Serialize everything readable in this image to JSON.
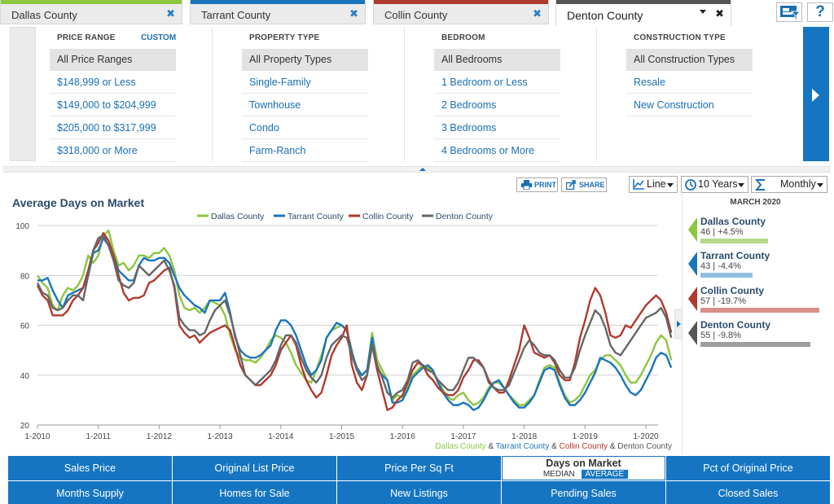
{
  "tabs": [
    {
      "label": "Dallas County",
      "color": "#8dc63f",
      "active": false
    },
    {
      "label": "Tarrant County",
      "color": "#1a75bc",
      "active": false
    },
    {
      "label": "Collin County",
      "color": "#b03a2e",
      "active": false
    },
    {
      "label": "Denton County",
      "color": "#555555",
      "active": true
    }
  ],
  "tab_close_glyph": "✖",
  "help_glyph": "?",
  "filters": {
    "price": {
      "title": "PRICE RANGE",
      "custom": "CUSTOM",
      "options": [
        "All Price Ranges",
        "$148,999 or Less",
        "$149,000 to $204,999",
        "$205,000 to $317,999",
        "$318,000 or More"
      ]
    },
    "property": {
      "title": "PROPERTY TYPE",
      "options": [
        "All Property Types",
        "Single-Family",
        "Townhouse",
        "Condo",
        "Farm-Ranch"
      ]
    },
    "bedroom": {
      "title": "BEDROOM",
      "options": [
        "All Bedrooms",
        "1 Bedroom or Less",
        "2 Bedrooms",
        "3 Bedrooms",
        "4 Bedrooms or More"
      ]
    },
    "construction": {
      "title": "CONSTRUCTION TYPE",
      "options": [
        "All Construction Types",
        "Resale",
        "New Construction"
      ]
    }
  },
  "toolbar": {
    "print": "PRINT",
    "share": "SHARE",
    "chart_type": "Line",
    "range": "10 Years",
    "interval": "Monthly"
  },
  "side_panel": {
    "date": "MARCH 2020",
    "items": [
      {
        "name": "Dallas County",
        "stat": "46 | +4.5%",
        "color": "#8dc63f",
        "bar_color": "#b5d98b",
        "level": 0.47
      },
      {
        "name": "Tarrant County",
        "stat": "43 | -4.4%",
        "color": "#1a75bc",
        "bar_color": "#8fbfe3",
        "level": 0.44
      },
      {
        "name": "Collin County",
        "stat": "57 | -19.7%",
        "color": "#b03a2e",
        "bar_color": "#d98e87",
        "level": 0.99
      },
      {
        "name": "Denton County",
        "stat": "55 | -9.8%",
        "color": "#555555",
        "bar_color": "#9d9d9d",
        "level": 0.93
      }
    ]
  },
  "metrics": {
    "row1": [
      "Sales Price",
      "Original List Price",
      "Price Per Sq Ft",
      "Days on Market",
      "Pct of Original Price"
    ],
    "row2": [
      "Months Supply",
      "Homes for Sale",
      "New Listings",
      "Pending Sales",
      "Closed Sales"
    ],
    "active": "Days on Market",
    "active_options": [
      "MEDIAN",
      "AVERAGE"
    ],
    "active_option": "AVERAGE"
  },
  "chart_data": {
    "type": "line",
    "title": "Average Days on Market",
    "x_ticks": [
      "1-2010",
      "1-2011",
      "1-2012",
      "1-2013",
      "1-2014",
      "1-2015",
      "1-2016",
      "1-2017",
      "1-2018",
      "1-2019",
      "1-2020"
    ],
    "ylim": [
      20,
      100
    ],
    "y_ticks": [
      20,
      40,
      60,
      80,
      100
    ],
    "grid": true,
    "legend_position": "top",
    "start": "2010-01",
    "end": "2020-03",
    "footer_sep1": " & ",
    "footer_sep2": " & ",
    "footer_sep3": " & ",
    "series": [
      {
        "name": "Dallas County",
        "color": "#8dc63f",
        "values": [
          80,
          77,
          75,
          68,
          66,
          72,
          75,
          74,
          76,
          80,
          88,
          85,
          88,
          96,
          98,
          90,
          84,
          85,
          82,
          84,
          88,
          88,
          87,
          89,
          89,
          91,
          88,
          82,
          72,
          67,
          66,
          67,
          65,
          67,
          70,
          69,
          68,
          64,
          56,
          50,
          47,
          46,
          46,
          45,
          47,
          50,
          54,
          56,
          55,
          53,
          49,
          44,
          41,
          38,
          37,
          42,
          48,
          55,
          58,
          59,
          60,
          58,
          50,
          42,
          40,
          42,
          57,
          46,
          42,
          38,
          30,
          32,
          31,
          36,
          40,
          42,
          44,
          43,
          41,
          38,
          34,
          31,
          30,
          32,
          33,
          30,
          28,
          29,
          31,
          35,
          37,
          37,
          35,
          32,
          30,
          28,
          28,
          30,
          32,
          38,
          43,
          44,
          43,
          37,
          32,
          29,
          30,
          32,
          36,
          40,
          42,
          46,
          48,
          48,
          46,
          44,
          40,
          37,
          37,
          40,
          44,
          48,
          53,
          56,
          54,
          46
        ]
      },
      {
        "name": "Tarrant County",
        "color": "#1a75bc",
        "values": [
          78,
          78,
          79,
          74,
          70,
          67,
          72,
          73,
          74,
          75,
          80,
          89,
          90,
          95,
          92,
          88,
          82,
          80,
          78,
          78,
          84,
          87,
          86,
          86,
          87,
          87,
          85,
          80,
          75,
          72,
          70,
          68,
          67,
          65,
          70,
          70,
          70,
          73,
          65,
          55,
          50,
          48,
          47,
          47,
          48,
          50,
          52,
          58,
          62,
          62,
          60,
          56,
          50,
          44,
          40,
          42,
          46,
          55,
          58,
          61,
          60,
          58,
          49,
          43,
          40,
          42,
          55,
          43,
          40,
          38,
          29,
          29,
          30,
          34,
          39,
          41,
          43,
          44,
          42,
          37,
          33,
          30,
          28,
          28,
          29,
          28,
          26,
          27,
          30,
          34,
          37,
          38,
          35,
          32,
          29,
          27,
          27,
          29,
          32,
          37,
          42,
          43,
          42,
          36,
          31,
          28,
          28,
          30,
          33,
          37,
          41,
          47,
          46,
          45,
          43,
          40,
          36,
          33,
          32,
          34,
          38,
          42,
          47,
          49,
          48,
          43
        ]
      },
      {
        "name": "Collin County",
        "color": "#b03a2e",
        "values": [
          76,
          72,
          70,
          64,
          64,
          64,
          66,
          70,
          72,
          75,
          82,
          90,
          93,
          97,
          94,
          88,
          80,
          73,
          70,
          71,
          71,
          72,
          77,
          78,
          80,
          82,
          83,
          75,
          60,
          57,
          55,
          56,
          53,
          55,
          57,
          58,
          59,
          60,
          58,
          51,
          44,
          40,
          38,
          36,
          36,
          38,
          40,
          44,
          50,
          53,
          56,
          52,
          44,
          38,
          34,
          31,
          33,
          40,
          48,
          52,
          55,
          60,
          44,
          37,
          34,
          40,
          52,
          42,
          34,
          26,
          27,
          30,
          32,
          37,
          42,
          45,
          44,
          40,
          38,
          35,
          33,
          32,
          32,
          34,
          39,
          42,
          46,
          46,
          43,
          38,
          35,
          33,
          33,
          38,
          44,
          50,
          60,
          55,
          49,
          48,
          47,
          48,
          45,
          40,
          38,
          38,
          45,
          55,
          62,
          70,
          75,
          72,
          65,
          56,
          55,
          56,
          60,
          59,
          62,
          65,
          68,
          70,
          72,
          70,
          65,
          57
        ]
      },
      {
        "name": "Denton County",
        "color": "#666666",
        "values": [
          77,
          73,
          72,
          67,
          66,
          67,
          70,
          72,
          72,
          70,
          80,
          90,
          95,
          96,
          92,
          86,
          78,
          76,
          75,
          77,
          84,
          82,
          80,
          82,
          84,
          86,
          82,
          76,
          63,
          60,
          58,
          58,
          56,
          57,
          62,
          66,
          68,
          70,
          64,
          56,
          48,
          40,
          38,
          36,
          38,
          40,
          42,
          46,
          52,
          56,
          56,
          53,
          47,
          42,
          39,
          37,
          40,
          47,
          52,
          54,
          56,
          55,
          48,
          42,
          38,
          40,
          52,
          44,
          39,
          33,
          31,
          33,
          34,
          38,
          45,
          46,
          44,
          42,
          41,
          38,
          36,
          34,
          34,
          37,
          42,
          47,
          47,
          45,
          43,
          37,
          35,
          34,
          34,
          36,
          41,
          46,
          51,
          54,
          52,
          49,
          48,
          48,
          46,
          42,
          39,
          39,
          43,
          50,
          56,
          61,
          66,
          64,
          59,
          52,
          49,
          48,
          51,
          54,
          57,
          60,
          63,
          64,
          65,
          67,
          63,
          55
        ]
      }
    ]
  }
}
